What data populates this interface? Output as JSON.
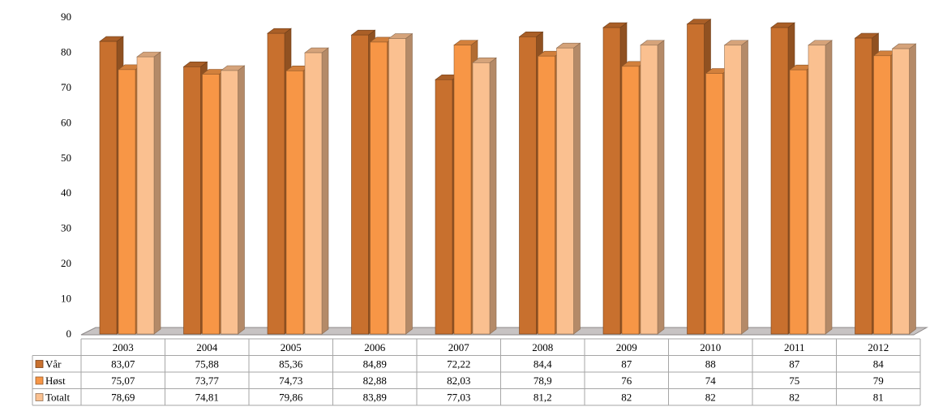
{
  "chart_data": {
    "type": "bar",
    "title": "",
    "xlabel": "",
    "ylabel": "",
    "ylim": [
      0,
      90
    ],
    "yticks": [
      0,
      10,
      20,
      30,
      40,
      50,
      60,
      70,
      80,
      90
    ],
    "grid": false,
    "legend": "data-table-left",
    "categories": [
      "2003",
      "2004",
      "2005",
      "2006",
      "2007",
      "2008",
      "2009",
      "2010",
      "2011",
      "2012"
    ],
    "series": [
      {
        "name": "Vår",
        "color": "#C8702E",
        "values": [
          83.07,
          75.88,
          85.36,
          84.89,
          72.22,
          84.4,
          87,
          88,
          87,
          84
        ],
        "labels": [
          "83,07",
          "75,88",
          "85,36",
          "84,89",
          "72,22",
          "84,4",
          "87",
          "88",
          "87",
          "84"
        ]
      },
      {
        "name": "Høst",
        "color": "#F79646",
        "values": [
          75.07,
          73.77,
          74.73,
          82.88,
          82.03,
          78.9,
          76,
          74,
          75,
          79
        ],
        "labels": [
          "75,07",
          "73,77",
          "74,73",
          "82,88",
          "82,03",
          "78,9",
          "76",
          "74",
          "75",
          "79"
        ]
      },
      {
        "name": "Totalt",
        "color": "#FAC090",
        "values": [
          78.69,
          74.81,
          79.86,
          83.89,
          77.03,
          81.2,
          82,
          82,
          82,
          81
        ],
        "labels": [
          "78,69",
          "74,81",
          "79,86",
          "83,89",
          "77,03",
          "81,2",
          "82",
          "82",
          "82",
          "81"
        ]
      }
    ]
  }
}
